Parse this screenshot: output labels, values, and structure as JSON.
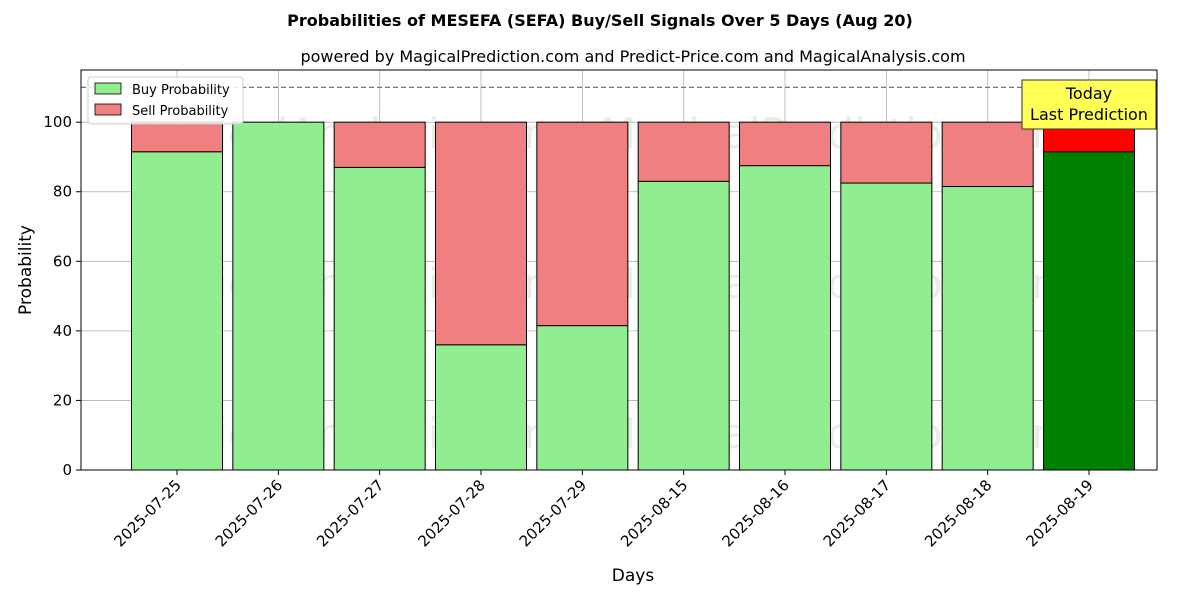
{
  "chart_data": {
    "type": "bar",
    "stacked": true,
    "title": "Probabilities of MESEFA (SEFA) Buy/Sell Signals Over 5 Days (Aug 20)",
    "subtitle": "powered by MagicalPrediction.com and Predict-Price.com and MagicalAnalysis.com",
    "xlabel": "Days",
    "ylabel": "Probability",
    "ylim": [
      0,
      115
    ],
    "yticks": [
      0,
      20,
      40,
      60,
      80,
      100
    ],
    "grid": true,
    "legend_position": "top-left",
    "reference_line": {
      "y": 110,
      "style": "dashed"
    },
    "categories": [
      "2025-07-25",
      "2025-07-26",
      "2025-07-27",
      "2025-07-28",
      "2025-07-29",
      "2025-08-15",
      "2025-08-16",
      "2025-08-17",
      "2025-08-18",
      "2025-08-19"
    ],
    "series": [
      {
        "name": "Buy Probability",
        "color": "#90ee90",
        "highlight_color": "#008000",
        "values": [
          91.5,
          100,
          87,
          36,
          41.5,
          83,
          87.5,
          82.5,
          81.5,
          91.5
        ]
      },
      {
        "name": "Sell Probability",
        "color": "#f08080",
        "highlight_color": "#ff0000",
        "values": [
          8.5,
          0,
          13,
          64,
          58.5,
          17,
          12.5,
          17.5,
          18.5,
          8.5
        ]
      }
    ],
    "highlight_index": 9,
    "annotation": {
      "lines": [
        "Today",
        "Last Prediction"
      ],
      "background": "#ffff55"
    }
  },
  "watermarks": [
    "MagicalAnalysis.com",
    "MagicalPrediction.com"
  ]
}
